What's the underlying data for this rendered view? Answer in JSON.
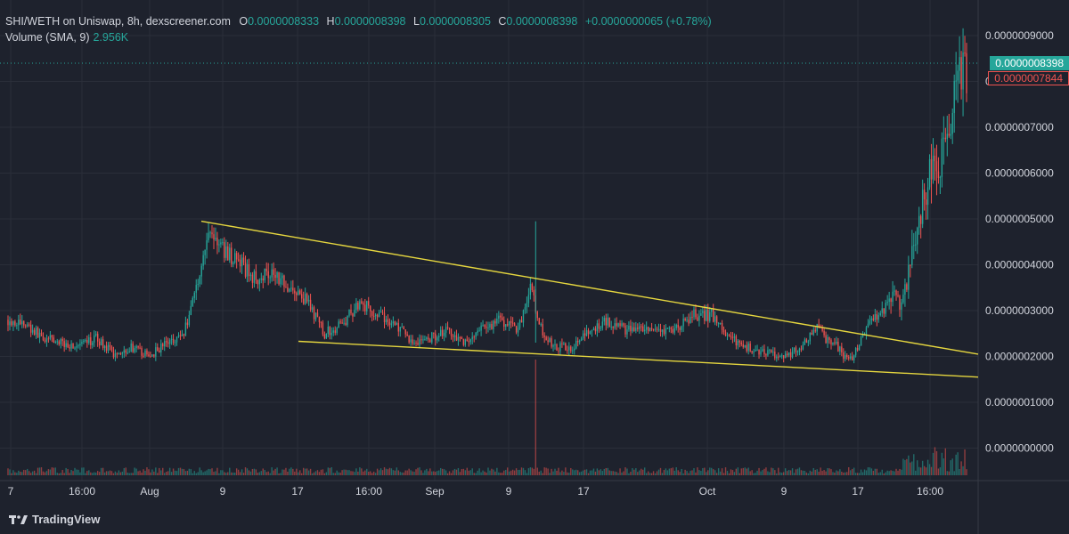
{
  "header": {
    "symbol": "SHI/WETH on Uniswap, 8h, dexscreener.com",
    "open_label": "O",
    "open": "0.0000008333",
    "high_label": "H",
    "high": "0.0000008398",
    "low_label": "L",
    "low": "0.0000008305",
    "close_label": "C",
    "close": "0.0000008398",
    "change": "+0.0000000065 (+0.78%)",
    "volume_label": "Volume (SMA, 9)",
    "volume_value": "2.956K"
  },
  "branding": {
    "name": "TradingView"
  },
  "price_tags": {
    "current": "0.0000008398",
    "secondary": "0.0000007844"
  },
  "colors": {
    "background": "#1e222d",
    "up": "#26a69a",
    "down": "#ef5350",
    "trendline": "#e5d63f",
    "grid": "#2a2e39",
    "text": "#d1d4dc"
  },
  "chart_data": {
    "type": "candlestick",
    "interval": "8h",
    "y_axis": {
      "side": "right",
      "ticks": [
        "0.0000009000",
        "0.0000008000",
        "0.0000007000",
        "0.0000006000",
        "0.0000005000",
        "0.0000004000",
        "0.0000003000",
        "0.0000002000",
        "0.0000001000",
        "0.0000000000"
      ],
      "range": [
        -0.0,
        9.2e-07
      ]
    },
    "x_axis": {
      "ticks": [
        "7",
        "16:00",
        "Aug",
        "9",
        "17",
        "16:00",
        "Sep",
        "9",
        "17",
        "Oct",
        "9",
        "17",
        "16:00"
      ]
    },
    "price_anchors": [
      [
        0,
        2.8e-07
      ],
      [
        10,
        2.7e-07
      ],
      [
        20,
        2.4e-07
      ],
      [
        30,
        2.3e-07
      ],
      [
        40,
        2.2e-07
      ],
      [
        50,
        2.4e-07
      ],
      [
        60,
        2.05e-07
      ],
      [
        70,
        2.2e-07
      ],
      [
        80,
        2e-07
      ],
      [
        90,
        2.3e-07
      ],
      [
        100,
        2.5e-07
      ],
      [
        108,
        3.7e-07
      ],
      [
        115,
        4.8e-07
      ],
      [
        120,
        4.4e-07
      ],
      [
        130,
        4.1e-07
      ],
      [
        140,
        3.7e-07
      ],
      [
        150,
        3.9e-07
      ],
      [
        160,
        3.5e-07
      ],
      [
        170,
        3.2e-07
      ],
      [
        180,
        2.5e-07
      ],
      [
        190,
        2.7e-07
      ],
      [
        200,
        3.2e-07
      ],
      [
        210,
        2.9e-07
      ],
      [
        220,
        2.7e-07
      ],
      [
        230,
        2.3e-07
      ],
      [
        240,
        2.4e-07
      ],
      [
        250,
        2.6e-07
      ],
      [
        260,
        2.3e-07
      ],
      [
        270,
        2.6e-07
      ],
      [
        280,
        2.8e-07
      ],
      [
        290,
        2.6e-07
      ],
      [
        297,
        3.5e-07
      ],
      [
        303,
        2.6e-07
      ],
      [
        310,
        2.2e-07
      ],
      [
        320,
        2.2e-07
      ],
      [
        330,
        2.5e-07
      ],
      [
        340,
        2.8e-07
      ],
      [
        350,
        2.6e-07
      ],
      [
        360,
        2.55e-07
      ],
      [
        370,
        2.5e-07
      ],
      [
        380,
        2.6e-07
      ],
      [
        390,
        2.9e-07
      ],
      [
        400,
        2.9e-07
      ],
      [
        410,
        2.4e-07
      ],
      [
        420,
        2.2e-07
      ],
      [
        430,
        2.1e-07
      ],
      [
        440,
        2e-07
      ],
      [
        450,
        2.15e-07
      ],
      [
        460,
        2.6e-07
      ],
      [
        465,
        2.4e-07
      ],
      [
        470,
        2.3e-07
      ],
      [
        475,
        2e-07
      ],
      [
        480,
        1.95e-07
      ],
      [
        488,
        2.6e-07
      ],
      [
        493,
        2.9e-07
      ],
      [
        500,
        3.1e-07
      ],
      [
        508,
        3.3e-07
      ],
      [
        513,
        3.9e-07
      ],
      [
        518,
        4.9e-07
      ],
      [
        522,
        5.7e-07
      ],
      [
        526,
        6.1e-07
      ],
      [
        530,
        6.3e-07
      ],
      [
        534,
        6.8e-07
      ],
      [
        538,
        7.9e-07
      ],
      [
        542,
        8.2e-07
      ],
      [
        546,
        8.4e-07
      ]
    ],
    "candle_count": 546,
    "trendlines": [
      {
        "name": "upper",
        "from": [
          0.2,
          4.95e-07
        ],
        "to": [
          1.0,
          2.05e-07
        ]
      },
      {
        "name": "lower",
        "from": [
          0.3,
          2.33e-07
        ],
        "to": [
          1.0,
          1.55e-07
        ]
      }
    ],
    "volume_spike_index": 300
  }
}
